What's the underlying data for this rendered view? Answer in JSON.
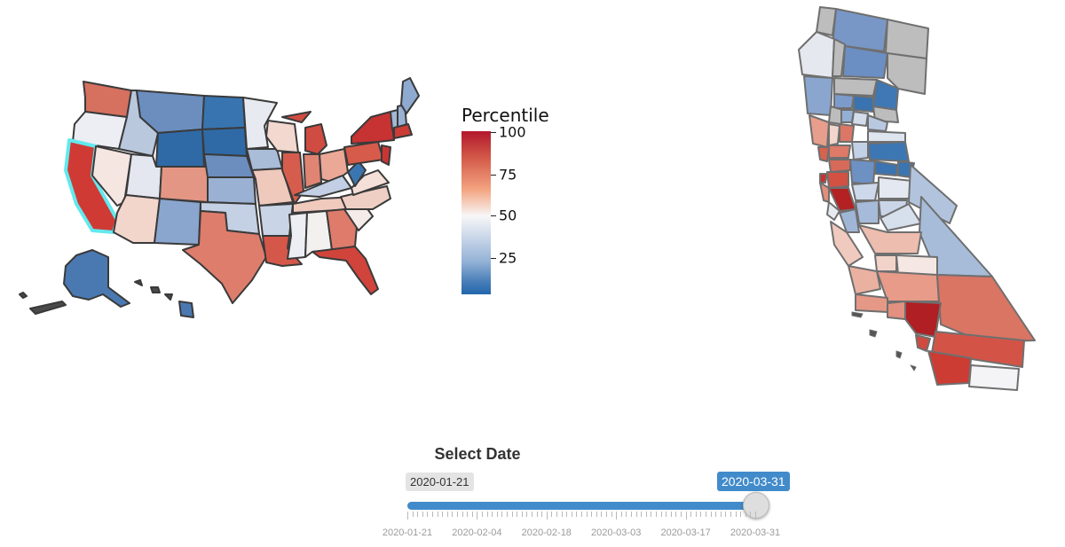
{
  "legend": {
    "title": "Percentile",
    "ticks": [
      {
        "label": "100",
        "value": 100
      },
      {
        "label": "75",
        "value": 75
      },
      {
        "label": "50",
        "value": 50
      },
      {
        "label": "25",
        "value": 25
      }
    ],
    "colors": {
      "high": "#b2182b",
      "mid": "#f7f7f7",
      "low": "#2166ac",
      "no_data": "#bdbdbd",
      "highlight": "#62e9ee"
    }
  },
  "us_map": {
    "highlighted_state": "California",
    "states": [
      {
        "name": "Washington",
        "percentile": 85
      },
      {
        "name": "Oregon",
        "percentile": 47
      },
      {
        "name": "California",
        "percentile": 92
      },
      {
        "name": "Nevada",
        "percentile": 56
      },
      {
        "name": "Idaho",
        "percentile": 35
      },
      {
        "name": "Montana",
        "percentile": 22
      },
      {
        "name": "Wyoming",
        "percentile": 8
      },
      {
        "name": "Utah",
        "percentile": 48
      },
      {
        "name": "Arizona",
        "percentile": 62
      },
      {
        "name": "Colorado",
        "percentile": 75
      },
      {
        "name": "New Mexico",
        "percentile": 28
      },
      {
        "name": "North Dakota",
        "percentile": 10
      },
      {
        "name": "South Dakota",
        "percentile": 8
      },
      {
        "name": "Nebraska",
        "percentile": 20
      },
      {
        "name": "Kansas",
        "percentile": 30
      },
      {
        "name": "Oklahoma",
        "percentile": 38
      },
      {
        "name": "Texas",
        "percentile": 78
      },
      {
        "name": "Minnesota",
        "percentile": 48
      },
      {
        "name": "Iowa",
        "percentile": 33
      },
      {
        "name": "Missouri",
        "percentile": 62
      },
      {
        "name": "Arkansas",
        "percentile": 45
      },
      {
        "name": "Louisiana",
        "percentile": 88
      },
      {
        "name": "Wisconsin",
        "percentile": 68
      },
      {
        "name": "Illinois",
        "percentile": 85
      },
      {
        "name": "Michigan",
        "percentile": 90
      },
      {
        "name": "Indiana",
        "percentile": 78
      },
      {
        "name": "Ohio",
        "percentile": 70
      },
      {
        "name": "Kentucky",
        "percentile": 38
      },
      {
        "name": "Tennessee",
        "percentile": 64
      },
      {
        "name": "Mississippi",
        "percentile": 50
      },
      {
        "name": "Alabama",
        "percentile": 54
      },
      {
        "name": "Georgia",
        "percentile": 80
      },
      {
        "name": "Florida",
        "percentile": 92
      },
      {
        "name": "South Carolina",
        "percentile": 52
      },
      {
        "name": "North Carolina",
        "percentile": 62
      },
      {
        "name": "Virginia",
        "percentile": 58
      },
      {
        "name": "West Virginia",
        "percentile": 10
      },
      {
        "name": "Pennsylvania",
        "percentile": 85
      },
      {
        "name": "New York",
        "percentile": 99
      },
      {
        "name": "New Jersey",
        "percentile": 96
      },
      {
        "name": "Vermont",
        "percentile": 30
      },
      {
        "name": "New Hampshire",
        "percentile": 35
      },
      {
        "name": "Maine",
        "percentile": 28
      },
      {
        "name": "Massachusetts",
        "percentile": 94
      },
      {
        "name": "Alaska",
        "percentile": 15
      },
      {
        "name": "Hawaii",
        "percentile": 25
      }
    ]
  },
  "slider": {
    "title": "Select Date",
    "min_label": "2020-01-21",
    "max_label": "2020-03-31",
    "selected_value": "2020-03-31",
    "selected_fraction": 1.0,
    "tick_labels": [
      "2020-01-21",
      "2020-02-04",
      "2020-02-18",
      "2020-03-03",
      "2020-03-17",
      "2020-03-31"
    ]
  }
}
